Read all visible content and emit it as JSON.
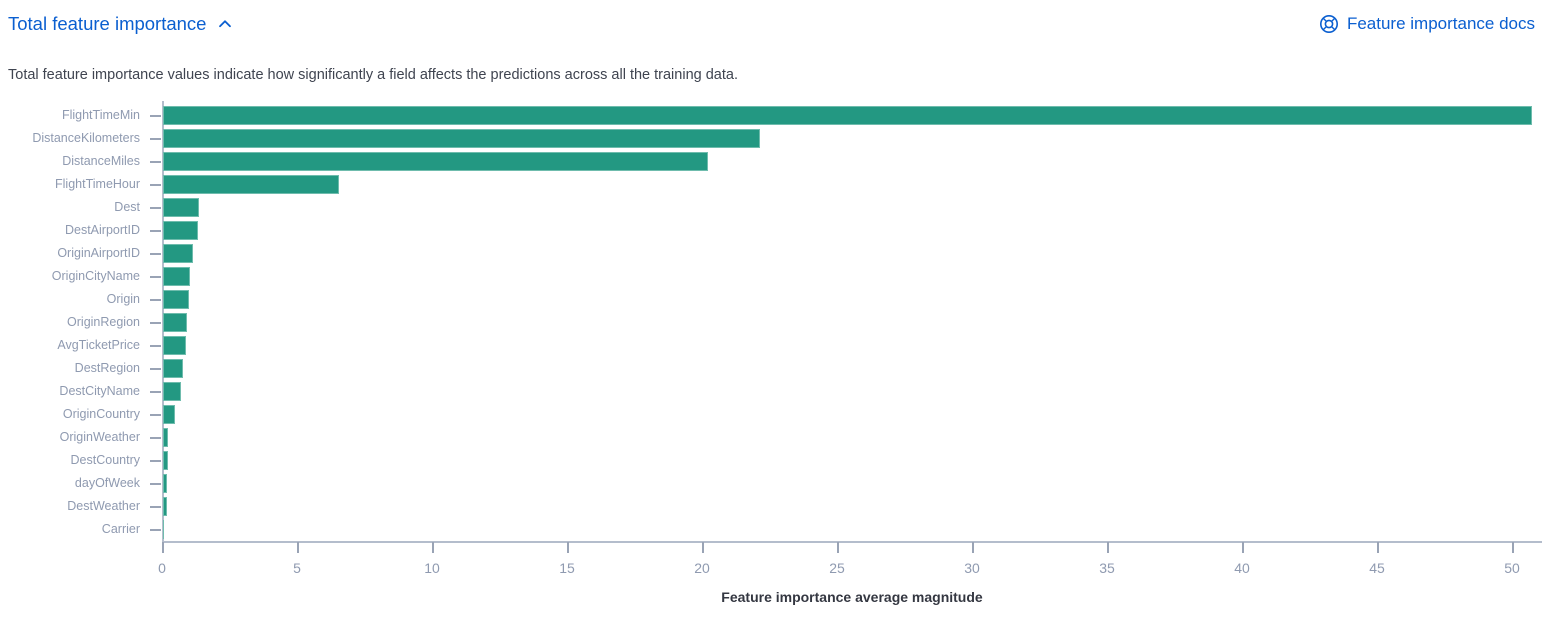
{
  "header": {
    "title": "Total feature importance",
    "docs_link_label": "Feature importance docs"
  },
  "description": "Total feature importance values indicate how significantly a field affects the predictions across all the training data.",
  "colors": {
    "link": "#0b5fd0",
    "bar": "#239882",
    "axis_line": "#b4bdcc",
    "tick_mark": "#99a3b5",
    "axis_label": "#8f9ab0",
    "body_text": "#3f4450",
    "axis_title_text": "#343741"
  },
  "chart_data": {
    "type": "bar",
    "orientation": "horizontal",
    "title": "Total feature importance",
    "xlabel": "Feature importance average magnitude",
    "ylabel": "",
    "xlim": [
      0,
      51
    ],
    "xticks": [
      0,
      5,
      10,
      15,
      20,
      25,
      30,
      35,
      40,
      45,
      50
    ],
    "grid": false,
    "legend": "none",
    "categories": [
      "FlightTimeMin",
      "DistanceKilometers",
      "DistanceMiles",
      "FlightTimeHour",
      "Dest",
      "DestAirportID",
      "OriginAirportID",
      "OriginCityName",
      "Origin",
      "OriginRegion",
      "AvgTicketPrice",
      "DestRegion",
      "DestCityName",
      "OriginCountry",
      "OriginWeather",
      "DestCountry",
      "dayOfWeek",
      "DestWeather",
      "Carrier"
    ],
    "values": [
      50.7,
      22.1,
      20.2,
      6.5,
      1.35,
      1.3,
      1.1,
      1.0,
      0.95,
      0.9,
      0.85,
      0.75,
      0.65,
      0.43,
      0.2,
      0.18,
      0.16,
      0.13,
      0.04
    ]
  }
}
